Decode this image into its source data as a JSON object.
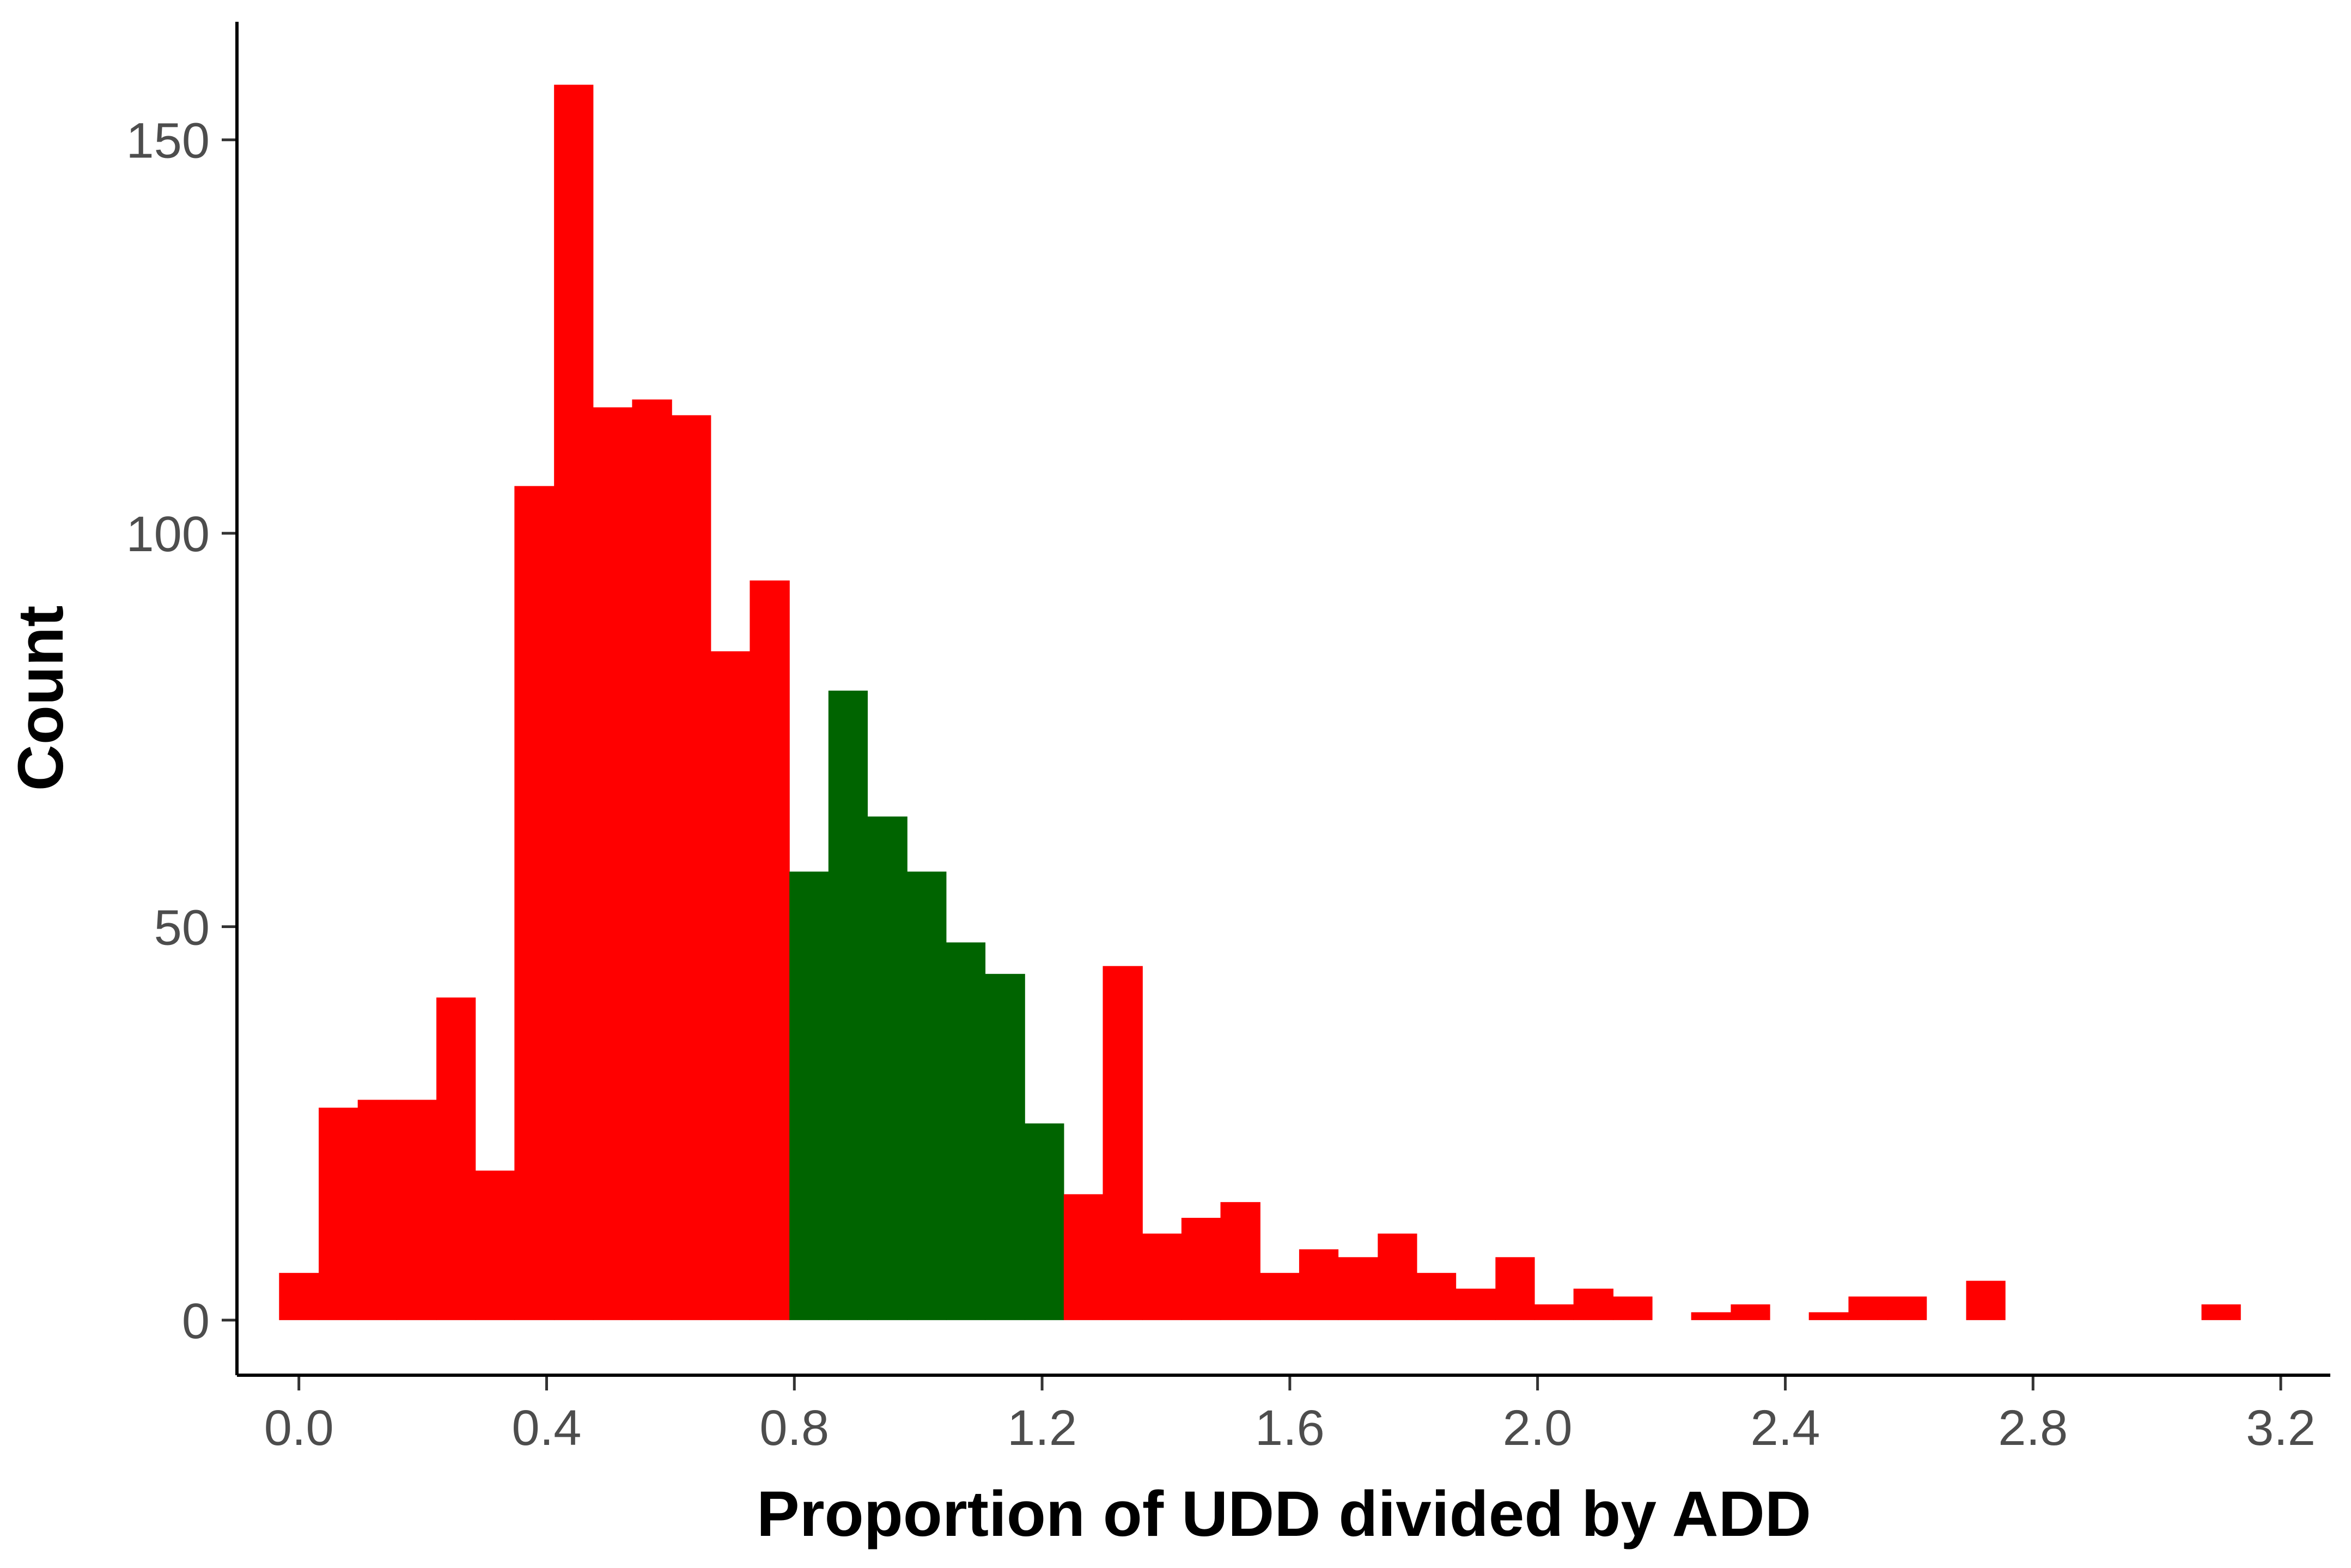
{
  "chart_data": {
    "type": "bar",
    "subtype": "histogram",
    "title": "",
    "xlabel": "Proportion of UDD divided by ADD",
    "ylabel": "Count",
    "xlim": [
      -0.1,
      3.28
    ],
    "ylim": [
      -7,
      165
    ],
    "bin_width": 0.0633,
    "x_ticks": [
      {
        "value": 0.0,
        "label": "0.0"
      },
      {
        "value": 0.4,
        "label": "0.4"
      },
      {
        "value": 0.8,
        "label": "0.8"
      },
      {
        "value": 1.2,
        "label": "1.2"
      },
      {
        "value": 1.6,
        "label": "1.6"
      },
      {
        "value": 2.0,
        "label": "2.0"
      },
      {
        "value": 2.4,
        "label": "2.4"
      },
      {
        "value": 2.8,
        "label": "2.8"
      },
      {
        "value": 3.2,
        "label": "3.2"
      }
    ],
    "y_ticks": [
      {
        "value": 0,
        "label": "0"
      },
      {
        "value": 50,
        "label": "50"
      },
      {
        "value": 100,
        "label": "100"
      },
      {
        "value": 150,
        "label": "150"
      }
    ],
    "grid": false,
    "colors": {
      "outside": "#ff0000",
      "inside": "#006400"
    },
    "bins": [
      {
        "start": -0.032,
        "end": 0.032,
        "count": 6,
        "group": "outside"
      },
      {
        "start": 0.032,
        "end": 0.095,
        "count": 27,
        "group": "outside"
      },
      {
        "start": 0.095,
        "end": 0.158,
        "count": 28,
        "group": "outside"
      },
      {
        "start": 0.158,
        "end": 0.222,
        "count": 28,
        "group": "outside"
      },
      {
        "start": 0.222,
        "end": 0.285,
        "count": 41,
        "group": "outside"
      },
      {
        "start": 0.285,
        "end": 0.348,
        "count": 19,
        "group": "outside"
      },
      {
        "start": 0.348,
        "end": 0.412,
        "count": 106,
        "group": "outside"
      },
      {
        "start": 0.412,
        "end": 0.475,
        "count": 157,
        "group": "outside"
      },
      {
        "start": 0.475,
        "end": 0.538,
        "count": 116,
        "group": "outside"
      },
      {
        "start": 0.538,
        "end": 0.602,
        "count": 117,
        "group": "outside"
      },
      {
        "start": 0.602,
        "end": 0.665,
        "count": 115,
        "group": "outside"
      },
      {
        "start": 0.665,
        "end": 0.728,
        "count": 85,
        "group": "outside"
      },
      {
        "start": 0.728,
        "end": 0.792,
        "count": 94,
        "group": "outside"
      },
      {
        "start": 0.792,
        "end": 0.855,
        "count": 57,
        "group": "inside"
      },
      {
        "start": 0.855,
        "end": 0.918,
        "count": 80,
        "group": "inside"
      },
      {
        "start": 0.918,
        "end": 0.982,
        "count": 64,
        "group": "inside"
      },
      {
        "start": 0.982,
        "end": 1.045,
        "count": 57,
        "group": "inside"
      },
      {
        "start": 1.045,
        "end": 1.108,
        "count": 48,
        "group": "inside"
      },
      {
        "start": 1.108,
        "end": 1.172,
        "count": 44,
        "group": "inside"
      },
      {
        "start": 1.172,
        "end": 1.235,
        "count": 25,
        "group": "inside"
      },
      {
        "start": 1.235,
        "end": 1.298,
        "count": 16,
        "group": "outside"
      },
      {
        "start": 1.298,
        "end": 1.362,
        "count": 45,
        "group": "outside"
      },
      {
        "start": 1.362,
        "end": 1.425,
        "count": 11,
        "group": "outside"
      },
      {
        "start": 1.425,
        "end": 1.488,
        "count": 13,
        "group": "outside"
      },
      {
        "start": 1.488,
        "end": 1.552,
        "count": 15,
        "group": "outside"
      },
      {
        "start": 1.552,
        "end": 1.615,
        "count": 6,
        "group": "outside"
      },
      {
        "start": 1.615,
        "end": 1.678,
        "count": 9,
        "group": "outside"
      },
      {
        "start": 1.678,
        "end": 1.742,
        "count": 8,
        "group": "outside"
      },
      {
        "start": 1.742,
        "end": 1.805,
        "count": 11,
        "group": "outside"
      },
      {
        "start": 1.805,
        "end": 1.868,
        "count": 6,
        "group": "outside"
      },
      {
        "start": 1.868,
        "end": 1.932,
        "count": 4,
        "group": "outside"
      },
      {
        "start": 1.932,
        "end": 1.995,
        "count": 8,
        "group": "outside"
      },
      {
        "start": 1.995,
        "end": 2.058,
        "count": 2,
        "group": "outside"
      },
      {
        "start": 2.058,
        "end": 2.122,
        "count": 4,
        "group": "outside"
      },
      {
        "start": 2.122,
        "end": 2.185,
        "count": 3,
        "group": "outside"
      },
      {
        "start": 2.248,
        "end": 2.312,
        "count": 1,
        "group": "outside"
      },
      {
        "start": 2.312,
        "end": 2.375,
        "count": 2,
        "group": "outside"
      },
      {
        "start": 2.438,
        "end": 2.502,
        "count": 1,
        "group": "outside"
      },
      {
        "start": 2.502,
        "end": 2.565,
        "count": 3,
        "group": "outside"
      },
      {
        "start": 2.565,
        "end": 2.628,
        "count": 3,
        "group": "outside"
      },
      {
        "start": 2.692,
        "end": 2.755,
        "count": 5,
        "group": "outside"
      },
      {
        "start": 3.072,
        "end": 3.135,
        "count": 2,
        "group": "outside"
      }
    ]
  }
}
